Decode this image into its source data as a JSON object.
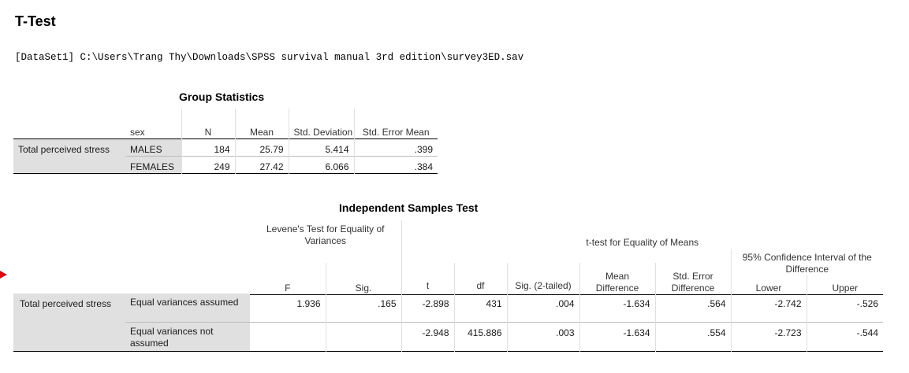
{
  "title": "T-Test",
  "dataset_path": "[DataSet1] C:\\Users\\Trang Thy\\Downloads\\SPSS survival manual 3rd edition\\survey3ED.sav",
  "group_stats": {
    "caption": "Group Statistics",
    "headers": {
      "group": "sex",
      "n": "N",
      "mean": "Mean",
      "sd": "Std. Deviation",
      "se": "Std. Error Mean"
    },
    "row_label": "Total perceived stress",
    "rows": [
      {
        "group": "MALES",
        "n": "184",
        "mean": "25.79",
        "sd": "5.414",
        "se": ".399"
      },
      {
        "group": "FEMALES",
        "n": "249",
        "mean": "27.42",
        "sd": "6.066",
        "se": ".384"
      }
    ]
  },
  "ind_test": {
    "caption": "Independent Samples Test",
    "levene_header": "Levene's Test for Equality of Variances",
    "ttest_header": "t-test for Equality of Means",
    "ci_header": "95% Confidence Interval of the Difference",
    "headers": {
      "f": "F",
      "sig": "Sig.",
      "t": "t",
      "df": "df",
      "sig2": "Sig. (2-tailed)",
      "md": "Mean Difference",
      "sed": "Std. Error Difference",
      "lower": "Lower",
      "upper": "Upper"
    },
    "row_label": "Total perceived stress",
    "rows": [
      {
        "label": "Equal variances assumed",
        "f": "1.936",
        "sig": ".165",
        "t": "-2.898",
        "df": "431",
        "sig2": ".004",
        "md": "-1.634",
        "sed": ".564",
        "lower": "-2.742",
        "upper": "-.526"
      },
      {
        "label": "Equal variances not assumed",
        "f": "",
        "sig": "",
        "t": "-2.948",
        "df": "415.886",
        "sig2": ".003",
        "md": "-1.634",
        "sed": ".554",
        "lower": "-2.723",
        "upper": "-.544"
      }
    ]
  }
}
